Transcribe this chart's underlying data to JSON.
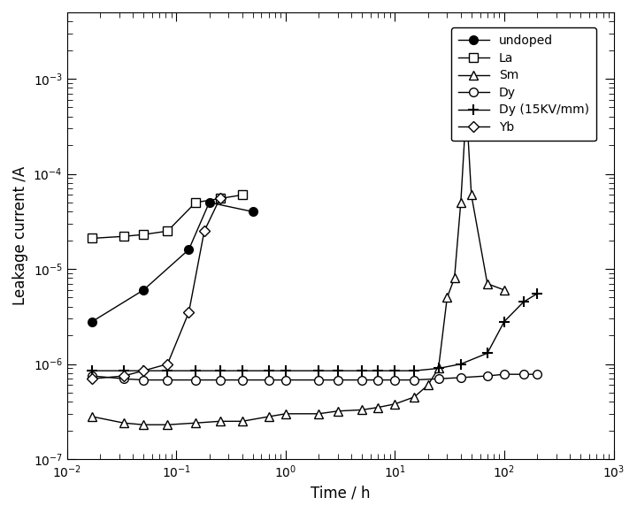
{
  "xlabel": "Time / h",
  "ylabel": "Leakage current /A",
  "xlim": [
    0.01,
    1000
  ],
  "ylim": [
    1e-07,
    0.005
  ],
  "background_color": "#ffffff",
  "series": {
    "undoped": {
      "x": [
        0.017,
        0.05,
        0.13,
        0.2,
        0.5
      ],
      "y": [
        2.8e-06,
        6e-06,
        1.6e-05,
        5e-05,
        4e-05
      ],
      "marker": "o",
      "markerfacecolor": "black",
      "markeredgecolor": "black",
      "markersize": 7,
      "label": "undoped"
    },
    "La": {
      "x": [
        0.017,
        0.033,
        0.05,
        0.083,
        0.15,
        0.25,
        0.4
      ],
      "y": [
        2.1e-05,
        2.2e-05,
        2.3e-05,
        2.5e-05,
        5e-05,
        5.5e-05,
        6e-05
      ],
      "marker": "s",
      "markerfacecolor": "white",
      "markeredgecolor": "black",
      "markersize": 7,
      "label": "La"
    },
    "Sm": {
      "x": [
        0.017,
        0.033,
        0.05,
        0.083,
        0.15,
        0.25,
        0.4,
        0.7,
        1.0,
        2.0,
        3.0,
        5.0,
        7.0,
        10.0,
        15.0,
        20.0,
        25.0,
        30.0,
        35.0,
        40.0,
        45.0,
        50.0,
        70.0,
        100.0
      ],
      "y": [
        2.8e-07,
        2.4e-07,
        2.3e-07,
        2.3e-07,
        2.4e-07,
        2.5e-07,
        2.5e-07,
        2.8e-07,
        3e-07,
        3e-07,
        3.2e-07,
        3.3e-07,
        3.5e-07,
        3.8e-07,
        4.5e-07,
        6e-07,
        9e-07,
        5e-06,
        8e-06,
        5e-05,
        0.0005,
        6e-05,
        7e-06,
        6e-06
      ],
      "marker": "^",
      "markerfacecolor": "white",
      "markeredgecolor": "black",
      "markersize": 7,
      "label": "Sm"
    },
    "Dy": {
      "x": [
        0.017,
        0.033,
        0.05,
        0.083,
        0.15,
        0.25,
        0.4,
        0.7,
        1.0,
        2.0,
        3.0,
        5.0,
        7.0,
        10.0,
        15.0,
        25.0,
        40.0,
        70.0,
        100.0,
        150.0,
        200.0
      ],
      "y": [
        7.5e-07,
        7e-07,
        6.8e-07,
        6.8e-07,
        6.8e-07,
        6.8e-07,
        6.8e-07,
        6.8e-07,
        6.8e-07,
        6.8e-07,
        6.8e-07,
        6.8e-07,
        6.8e-07,
        6.8e-07,
        6.8e-07,
        7e-07,
        7.2e-07,
        7.5e-07,
        7.8e-07,
        7.8e-07,
        7.8e-07
      ],
      "marker": "o",
      "markerfacecolor": "white",
      "markeredgecolor": "black",
      "markersize": 7,
      "label": "Dy"
    },
    "Dy15": {
      "x": [
        0.017,
        0.033,
        0.05,
        0.083,
        0.15,
        0.25,
        0.4,
        0.7,
        1.0,
        2.0,
        3.0,
        5.0,
        7.0,
        10.0,
        15.0,
        25.0,
        40.0,
        70.0,
        100.0,
        150.0,
        200.0
      ],
      "y": [
        8.5e-07,
        8.5e-07,
        8.5e-07,
        8.5e-07,
        8.5e-07,
        8.5e-07,
        8.5e-07,
        8.5e-07,
        8.5e-07,
        8.5e-07,
        8.5e-07,
        8.5e-07,
        8.5e-07,
        8.5e-07,
        8.5e-07,
        9e-07,
        1e-06,
        1.3e-06,
        2.8e-06,
        4.5e-06,
        5.5e-06
      ],
      "marker": "+",
      "markerfacecolor": "black",
      "markeredgecolor": "black",
      "markersize": 9,
      "markeredgewidth": 1.5,
      "label": "Dy (15KV/mm)"
    },
    "Yb": {
      "x": [
        0.017,
        0.033,
        0.05,
        0.083,
        0.13,
        0.18,
        0.25
      ],
      "y": [
        7e-07,
        7.5e-07,
        8.5e-07,
        1e-06,
        3.5e-06,
        2.5e-05,
        5.5e-05
      ],
      "marker": "D",
      "markerfacecolor": "white",
      "markeredgecolor": "black",
      "markersize": 6,
      "label": "Yb"
    }
  }
}
